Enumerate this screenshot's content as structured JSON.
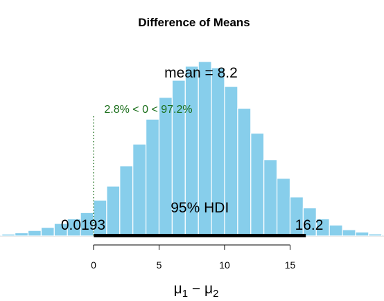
{
  "chart_data": {
    "type": "bar",
    "title": "Difference of Means",
    "xlabel_main": "μ",
    "xlabel_sub1": "1",
    "xlabel_sep": " − ",
    "xlabel_main2": "μ",
    "xlabel_sub2": "2",
    "bar_color": "#87ceeb",
    "bin_width": 1,
    "bins": [
      {
        "x0": -12,
        "value": 0.05
      },
      {
        "x0": -11,
        "value": 0.1
      },
      {
        "x0": -10,
        "value": 0.2
      },
      {
        "x0": -9,
        "value": 0.4
      },
      {
        "x0": -8,
        "value": 0.7
      },
      {
        "x0": -7,
        "value": 1.2
      },
      {
        "x0": -6,
        "value": 2.0
      },
      {
        "x0": -5,
        "value": 3.5
      },
      {
        "x0": -4,
        "value": 5.5
      },
      {
        "x0": -3,
        "value": 8.0
      },
      {
        "x0": -2,
        "value": 11.0
      },
      {
        "x0": -1,
        "value": 15.0
      },
      {
        "x0": 0,
        "value": 23.0
      },
      {
        "x0": 1,
        "value": 32.0
      },
      {
        "x0": 2,
        "value": 45.0
      },
      {
        "x0": 3,
        "value": 59.0
      },
      {
        "x0": 4,
        "value": 75.0
      },
      {
        "x0": 5,
        "value": 89.0
      },
      {
        "x0": 6,
        "value": 100.0
      },
      {
        "x0": 7,
        "value": 109.0
      },
      {
        "x0": 8,
        "value": 112.0
      },
      {
        "x0": 9,
        "value": 108.0
      },
      {
        "x0": 10,
        "value": 96.0
      },
      {
        "x0": 11,
        "value": 82.0
      },
      {
        "x0": 12,
        "value": 66.0
      },
      {
        "x0": 13,
        "value": 49.0
      },
      {
        "x0": 14,
        "value": 37.0
      },
      {
        "x0": 15,
        "value": 25.0
      },
      {
        "x0": 16,
        "value": 18.0
      },
      {
        "x0": 17,
        "value": 11.0
      },
      {
        "x0": 18,
        "value": 7.0
      },
      {
        "x0": 19,
        "value": 4.0
      },
      {
        "x0": 20,
        "value": 2.5
      },
      {
        "x0": 21,
        "value": 1.3
      },
      {
        "x0": 22,
        "value": 0.7
      },
      {
        "x0": 23,
        "value": 0.3
      },
      {
        "x0": 24,
        "value": 0.15
      }
    ],
    "xlim": [
      -10,
      22
    ],
    "ylim": [
      0,
      118
    ],
    "x_ticks": [
      0,
      5,
      10,
      15
    ],
    "x_tick_labels": [
      "0",
      "5",
      "10",
      "15"
    ],
    "x_axis_range": [
      0,
      15
    ],
    "mean_label": "mean = 8.2",
    "mean_value": 8.2,
    "comp_label": "2.8% < 0 < 97.2%",
    "comp_value": 0,
    "comp_color": "#1a6e1a",
    "hdi_label": "95% HDI",
    "hdi_low": 0.0193,
    "hdi_high": 16.2,
    "hdi_low_label": "0.0193",
    "hdi_high_label": "16.2",
    "grid": false,
    "legend": "none"
  }
}
